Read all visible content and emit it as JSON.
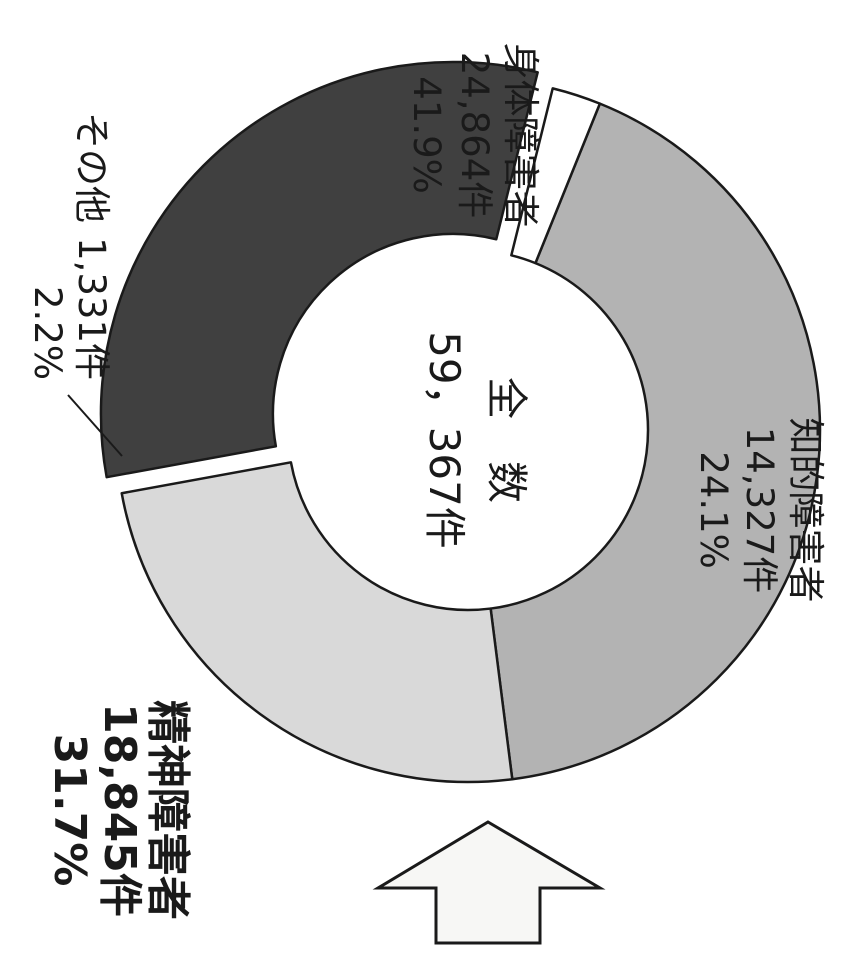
{
  "chart_data": {
    "type": "pie",
    "style": "donut",
    "orientation": "rotated-90-clockwise",
    "center": {
      "title": "全　数",
      "total": "59，367件"
    },
    "slices": [
      {
        "name": "身体障害者",
        "count": 24864,
        "count_label": "24,864件",
        "percent": 41.9,
        "percent_label": "41.9%",
        "color": "#b3b3b3",
        "exploded": false
      },
      {
        "name": "知的障害者",
        "count": 14327,
        "count_label": "14,327件",
        "percent": 24.1,
        "percent_label": "24.1%",
        "color": "#d9d9d9",
        "exploded": false
      },
      {
        "name": "精神障害者",
        "count": 18845,
        "count_label": "18,845件",
        "percent": 31.7,
        "percent_label": "31.7%",
        "color": "#404040",
        "exploded": true,
        "emphasized": true
      },
      {
        "name": "その他",
        "count": 1331,
        "count_label": "1,331件",
        "percent": 2.2,
        "percent_label": "2.2%",
        "color": "#ffffff",
        "exploded": false
      }
    ],
    "annotation": {
      "type": "arrow",
      "points_to": "精神障害者"
    }
  }
}
